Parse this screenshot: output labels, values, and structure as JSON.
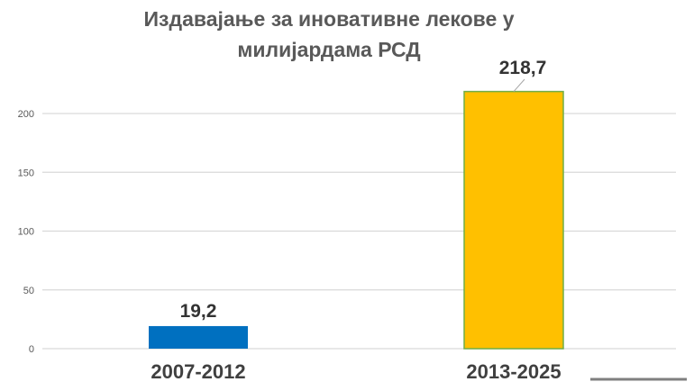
{
  "chart_data": {
    "type": "bar",
    "title_lines": [
      "Издавајање за иновативне лекове у",
      "милијардама РСД"
    ],
    "categories": [
      "2007-2012",
      "2013-2025"
    ],
    "values": [
      19.2,
      218.7
    ],
    "data_labels": [
      "19,2",
      "218,7"
    ],
    "colors": [
      "#0070C0",
      "#FFC000"
    ],
    "yticks": [
      0,
      50,
      100,
      150,
      200
    ],
    "ylim": [
      0,
      220
    ],
    "grid": true,
    "xlabel": "",
    "ylabel": ""
  }
}
